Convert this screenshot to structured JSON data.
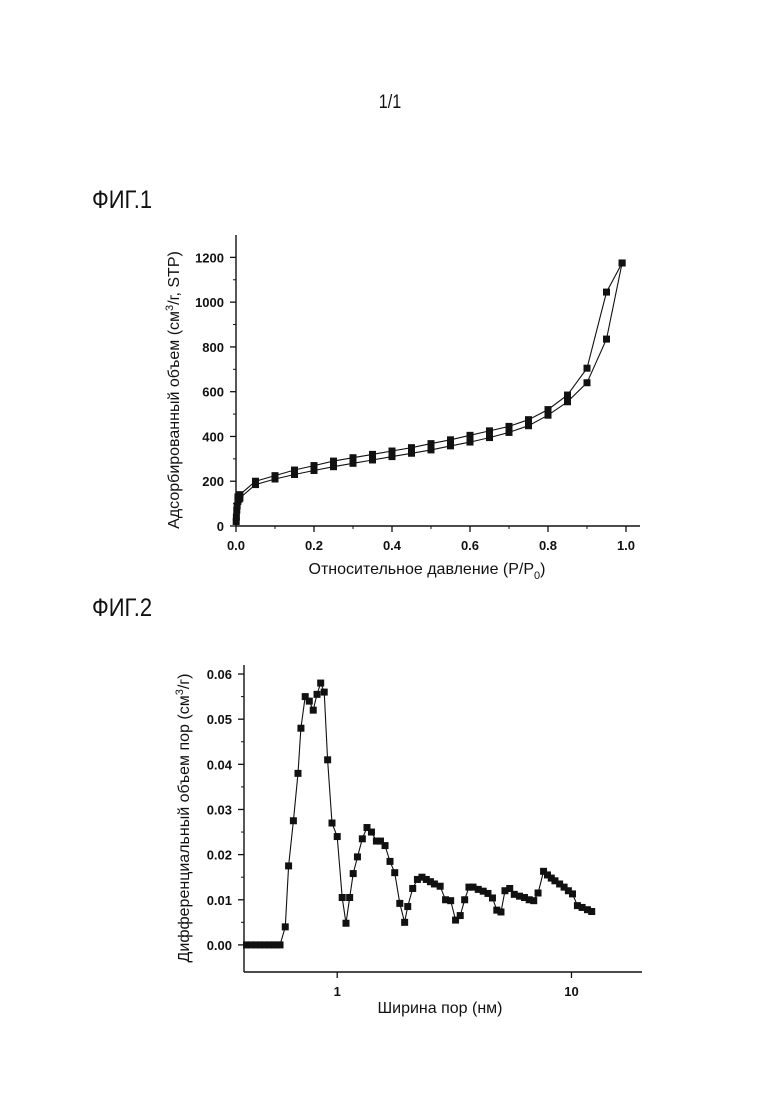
{
  "page": {
    "number": "1/1"
  },
  "figures": {
    "fig1_label": "ФИГ.1",
    "fig2_label": "ФИГ.2"
  },
  "chart_data": [
    {
      "type": "line",
      "markers": "square",
      "xlabel": "Относительное давление (P/P0)",
      "xlabel_main": "Относительное давление (P/P",
      "xlabel_sub": "0",
      "xlabel_end": ")",
      "ylabel": "Адсорбированный объем (см3/г, STP)",
      "ylabel_main": "Адсорбированный объем (см",
      "ylabel_sup": "3",
      "ylabel_end": "/г, STP)",
      "xlim": [
        0,
        1.0
      ],
      "ylim": [
        0,
        1300
      ],
      "xticks": [
        "0.0",
        "0.2",
        "0.4",
        "0.6",
        "0.8",
        "1.0"
      ],
      "yticks": [
        "0",
        "200",
        "400",
        "600",
        "800",
        "1000",
        "1200"
      ],
      "grid": false,
      "series": [
        {
          "x": [
            0.0005,
            0.001,
            0.002,
            0.003,
            0.005,
            0.008,
            0.01,
            0.05,
            0.1,
            0.15,
            0.2,
            0.25,
            0.3,
            0.35,
            0.4,
            0.45,
            0.5,
            0.55,
            0.6,
            0.65,
            0.7,
            0.75,
            0.8,
            0.85,
            0.9,
            0.95,
            0.99
          ],
          "y": [
            20,
            40,
            70,
            90,
            110,
            120,
            125,
            185,
            210,
            230,
            248,
            265,
            280,
            295,
            310,
            325,
            340,
            358,
            375,
            395,
            418,
            448,
            495,
            555,
            640,
            835,
            1175
          ]
        },
        {
          "x": [
            0.99,
            0.95,
            0.9,
            0.85,
            0.8,
            0.75,
            0.7,
            0.65,
            0.6,
            0.55,
            0.5,
            0.45,
            0.4,
            0.35,
            0.3,
            0.25,
            0.2,
            0.15,
            0.1,
            0.05,
            0.01,
            0.005
          ],
          "y": [
            1175,
            1045,
            705,
            585,
            520,
            475,
            445,
            425,
            405,
            385,
            368,
            350,
            335,
            320,
            305,
            290,
            270,
            250,
            225,
            200,
            140,
            130
          ]
        }
      ]
    },
    {
      "type": "line",
      "markers": "square",
      "xscale": "log",
      "xlabel": "Ширина пор (нм)",
      "ylabel": "Дифференциальный объем пор (см3/г)",
      "ylabel_main": "Дифференциальный объем пор (см",
      "ylabel_sup": "3",
      "ylabel_end": "/г)",
      "xlim": [
        0.4,
        20
      ],
      "ylim": [
        -0.006,
        0.062
      ],
      "xticks": [
        "1",
        "10"
      ],
      "yticks": [
        "0.00",
        "0.01",
        "0.02",
        "0.03",
        "0.04",
        "0.05",
        "0.06"
      ],
      "grid": false,
      "series": [
        {
          "x": [
            0.41,
            0.43,
            0.45,
            0.47,
            0.49,
            0.51,
            0.53,
            0.55,
            0.57,
            0.6,
            0.62,
            0.65,
            0.68,
            0.7,
            0.73,
            0.76,
            0.79,
            0.82,
            0.85,
            0.88,
            0.91,
            0.95,
            1.0,
            1.05,
            1.09,
            1.13,
            1.17,
            1.22,
            1.28,
            1.34,
            1.4,
            1.47,
            1.53,
            1.6,
            1.68,
            1.76,
            1.85,
            1.94,
            2.0,
            2.1,
            2.2,
            2.3,
            2.4,
            2.5,
            2.6,
            2.75,
            2.9,
            3.05,
            3.2,
            3.35,
            3.5,
            3.65,
            3.8,
            4.0,
            4.2,
            4.4,
            4.6,
            4.8,
            5.0,
            5.2,
            5.45,
            5.7,
            6.0,
            6.3,
            6.6,
            6.9,
            7.2,
            7.6,
            7.9,
            8.2,
            8.5,
            8.9,
            9.3,
            9.7,
            10.1,
            10.6,
            11.1,
            11.7,
            12.2
          ],
          "y": [
            0.0,
            0.0,
            0.0,
            0.0,
            0.0,
            0.0,
            0.0,
            0.0,
            0.0,
            0.004,
            0.0175,
            0.0275,
            0.038,
            0.048,
            0.055,
            0.054,
            0.052,
            0.0555,
            0.058,
            0.056,
            0.041,
            0.027,
            0.024,
            0.0105,
            0.0048,
            0.0105,
            0.0158,
            0.0195,
            0.0235,
            0.026,
            0.025,
            0.023,
            0.023,
            0.022,
            0.0185,
            0.016,
            0.0092,
            0.005,
            0.0085,
            0.0125,
            0.0145,
            0.015,
            0.0145,
            0.014,
            0.0135,
            0.013,
            0.01,
            0.0098,
            0.0055,
            0.0065,
            0.01,
            0.0128,
            0.0128,
            0.0123,
            0.0119,
            0.0114,
            0.0104,
            0.0077,
            0.0073,
            0.012,
            0.0125,
            0.0112,
            0.0108,
            0.0105,
            0.01,
            0.0098,
            0.0115,
            0.0163,
            0.0155,
            0.0148,
            0.0142,
            0.0135,
            0.0128,
            0.012,
            0.0113,
            0.0087,
            0.0083,
            0.0078,
            0.0074
          ]
        }
      ]
    }
  ]
}
